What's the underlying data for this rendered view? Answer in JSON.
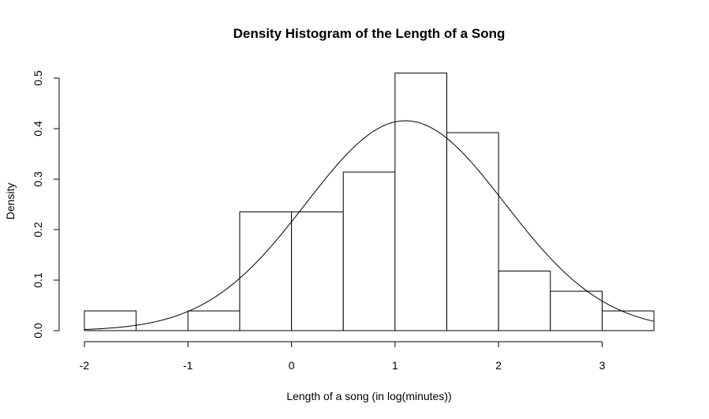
{
  "chart_data": {
    "type": "histogram",
    "title": "Density Histogram of the Length of a Song",
    "xlabel": "Length of a song (in log(minutes))",
    "ylabel": "Density",
    "xlim": [
      -2,
      3.5
    ],
    "ylim": [
      0,
      0.5
    ],
    "xticks": [
      -2,
      -1,
      0,
      1,
      2,
      3
    ],
    "yticks": [
      0.0,
      0.1,
      0.2,
      0.3,
      0.4,
      0.5
    ],
    "ytick_labels": [
      "0.0",
      "0.1",
      "0.2",
      "0.3",
      "0.4",
      "0.5"
    ],
    "bins": [
      {
        "start": -2.0,
        "end": -1.5,
        "density": 0.039
      },
      {
        "start": -1.5,
        "end": -1.0,
        "density": 0.0
      },
      {
        "start": -1.0,
        "end": -0.5,
        "density": 0.039
      },
      {
        "start": -0.5,
        "end": 0.0,
        "density": 0.235
      },
      {
        "start": 0.0,
        "end": 0.5,
        "density": 0.235
      },
      {
        "start": 0.5,
        "end": 1.0,
        "density": 0.314
      },
      {
        "start": 1.0,
        "end": 1.5,
        "density": 0.51
      },
      {
        "start": 1.5,
        "end": 2.0,
        "density": 0.392
      },
      {
        "start": 2.0,
        "end": 2.5,
        "density": 0.118
      },
      {
        "start": 2.5,
        "end": 3.0,
        "density": 0.078
      },
      {
        "start": 3.0,
        "end": 3.5,
        "density": 0.039
      }
    ],
    "density_curve": {
      "type": "normal",
      "mean": 1.1,
      "sd": 0.96,
      "x_range": [
        -2,
        3.5
      ]
    }
  }
}
